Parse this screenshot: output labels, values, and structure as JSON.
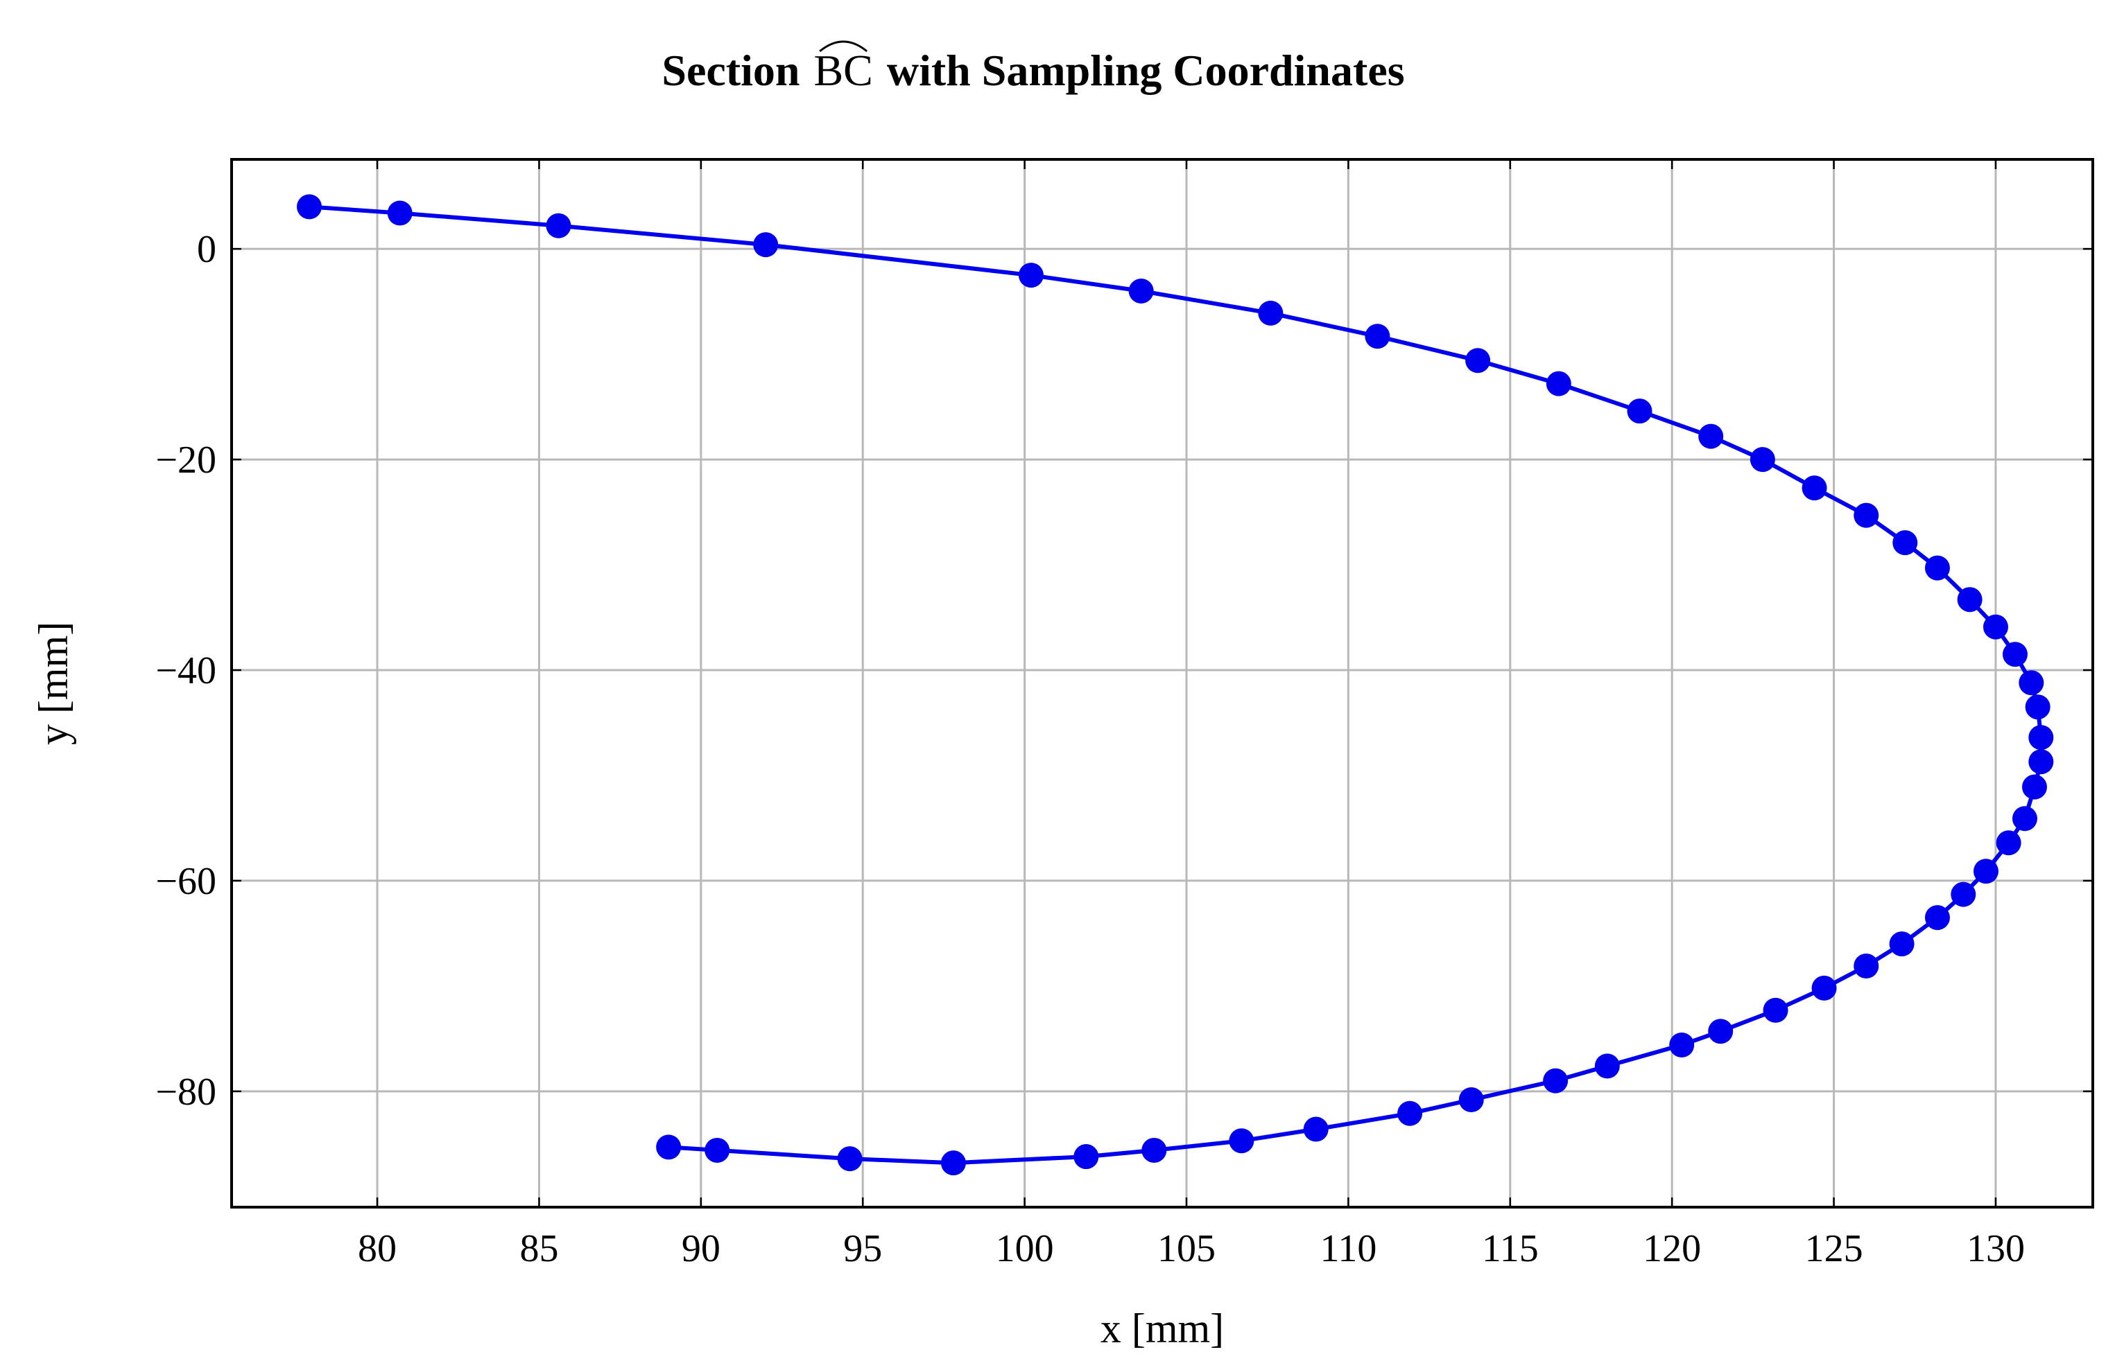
{
  "chart_data": {
    "type": "line",
    "title": "Section",
    "title_symbol": "BC",
    "title_suffix": "with Sampling Coordinates",
    "xlabel": "x [mm]",
    "ylabel": "y [mm]",
    "xlim": [
      75.5,
      133
    ],
    "ylim": [
      -91,
      8.5
    ],
    "xticks": [
      80,
      85,
      90,
      95,
      100,
      105,
      110,
      115,
      120,
      125,
      130
    ],
    "yticks": [
      0,
      -20,
      -40,
      -60,
      -80
    ],
    "xtick_labels": [
      "80",
      "85",
      "90",
      "95",
      "100",
      "105",
      "110",
      "115",
      "120",
      "125",
      "130"
    ],
    "ytick_labels": [
      "0",
      "−20",
      "−40",
      "−60",
      "−80"
    ],
    "grid": true,
    "series": [
      {
        "name": "Section BC",
        "color": "#0000ee",
        "marker": "circle",
        "x": [
          77.9,
          80.7,
          85.6,
          92.0,
          100.2,
          103.6,
          107.6,
          110.9,
          114.0,
          116.5,
          119.0,
          121.2,
          122.8,
          124.4,
          126.0,
          127.2,
          128.2,
          129.2,
          130.0,
          130.6,
          131.1,
          131.3,
          131.4,
          131.4,
          131.2,
          130.9,
          130.4,
          129.7,
          129.0,
          128.2,
          127.1,
          126.0,
          124.7,
          123.2,
          121.5,
          120.3,
          118.0,
          116.4,
          113.8,
          111.9,
          109.0,
          106.7,
          104.0,
          101.9,
          97.8,
          94.6,
          90.5,
          89.0
        ],
        "y": [
          4.0,
          3.4,
          2.2,
          0.4,
          -2.5,
          -4.0,
          -6.1,
          -8.3,
          -10.6,
          -12.8,
          -15.4,
          -17.8,
          -20.0,
          -22.7,
          -25.3,
          -27.9,
          -30.3,
          -33.3,
          -35.9,
          -38.5,
          -41.2,
          -43.5,
          -46.4,
          -48.7,
          -51.1,
          -54.1,
          -56.4,
          -59.1,
          -61.3,
          -63.5,
          -66.0,
          -68.1,
          -70.2,
          -72.3,
          -74.3,
          -75.6,
          -77.6,
          -79.0,
          -80.8,
          -82.1,
          -83.6,
          -84.7,
          -85.6,
          -86.2,
          -86.8,
          -86.4,
          -85.6,
          -85.3
        ]
      }
    ]
  }
}
